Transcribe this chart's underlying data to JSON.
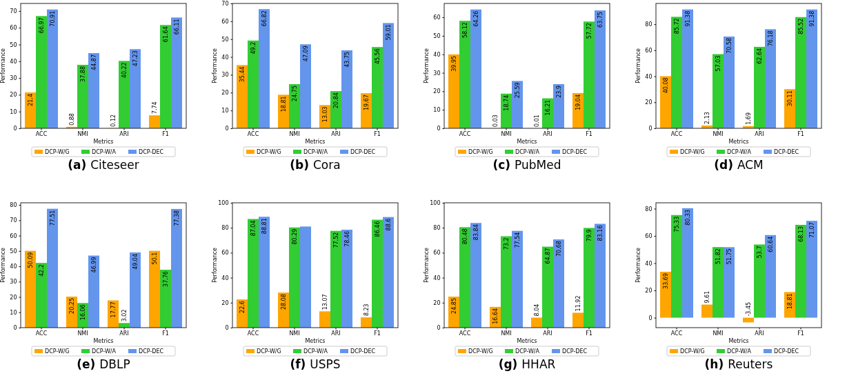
{
  "chart_data": [
    {
      "type": "bar",
      "title": "(a) Citeseer",
      "xlabel": "Metrics",
      "ylabel": "Performance",
      "categories": [
        "ACC",
        "NMI",
        "ARI",
        "F1"
      ],
      "ylim": [
        0,
        74.5
      ],
      "yticks": [
        0,
        10,
        20,
        30,
        40,
        50,
        60,
        70
      ],
      "legend": "bottom",
      "data_labels": true,
      "series": [
        {
          "name": "DCP-W/G",
          "color": "#ffa500",
          "values": [
            21.4,
            0.88,
            0.12,
            7.74
          ]
        },
        {
          "name": "DCP-W/A",
          "color": "#32cd32",
          "values": [
            66.97,
            37.88,
            40.22,
            61.64
          ]
        },
        {
          "name": "DCP-DEC",
          "color": "#6495ed",
          "values": [
            70.91,
            44.87,
            47.23,
            66.11
          ]
        }
      ]
    },
    {
      "type": "bar",
      "title": "(b) Cora",
      "xlabel": "Metrics",
      "ylabel": "Performance",
      "categories": [
        "ACC",
        "NMI",
        "ARI",
        "F1"
      ],
      "ylim": [
        0,
        70
      ],
      "yticks": [
        0,
        10,
        20,
        30,
        40,
        50,
        60,
        70
      ],
      "legend": "bottom",
      "data_labels": true,
      "series": [
        {
          "name": "DCP-W/G",
          "color": "#ffa500",
          "values": [
            35.44,
            18.81,
            13.03,
            19.67
          ]
        },
        {
          "name": "DCP-W/A",
          "color": "#32cd32",
          "values": [
            49.2,
            24.75,
            20.84,
            45.56
          ]
        },
        {
          "name": "DCP-DEC",
          "color": "#6495ed",
          "values": [
            66.82,
            47.09,
            43.75,
            59.01
          ]
        }
      ]
    },
    {
      "type": "bar",
      "title": "(c) PubMed",
      "xlabel": "Metrics",
      "ylabel": "Performance",
      "categories": [
        "ACC",
        "NMI",
        "ARI",
        "F1"
      ],
      "ylim": [
        0,
        67.5
      ],
      "yticks": [
        0,
        10,
        20,
        30,
        40,
        50,
        60
      ],
      "legend": "bottom",
      "data_labels": true,
      "series": [
        {
          "name": "DCP-W/G",
          "color": "#ffa500",
          "values": [
            39.95,
            0.03,
            0.01,
            19.04
          ]
        },
        {
          "name": "DCP-W/A",
          "color": "#32cd32",
          "values": [
            58.12,
            18.74,
            16.21,
            57.72
          ]
        },
        {
          "name": "DCP-DEC",
          "color": "#6495ed",
          "values": [
            64.26,
            25.59,
            23.9,
            63.75
          ]
        }
      ]
    },
    {
      "type": "bar",
      "title": "(d) ACM",
      "xlabel": "Metrics",
      "ylabel": "Performance",
      "categories": [
        "ACC",
        "NMI",
        "ARI",
        "F1"
      ],
      "ylim": [
        0,
        96
      ],
      "yticks": [
        0,
        20,
        40,
        60,
        80
      ],
      "legend": "bottom",
      "data_labels": true,
      "series": [
        {
          "name": "DCP-W/G",
          "color": "#ffa500",
          "values": [
            40.08,
            2.13,
            1.69,
            30.11
          ]
        },
        {
          "name": "DCP-W/A",
          "color": "#32cd32",
          "values": [
            85.72,
            57.03,
            62.64,
            85.52
          ]
        },
        {
          "name": "DCP-DEC",
          "color": "#6495ed",
          "values": [
            91.38,
            70.58,
            76.18,
            91.38
          ]
        }
      ]
    },
    {
      "type": "bar",
      "title": "(e) DBLP",
      "xlabel": "Metrics",
      "ylabel": "Performance",
      "categories": [
        "ACC",
        "NMI",
        "ARI",
        "F1"
      ],
      "ylim": [
        0,
        81.4
      ],
      "yticks": [
        0,
        10,
        20,
        30,
        40,
        50,
        60,
        70,
        80
      ],
      "legend": "bottom",
      "data_labels": true,
      "series": [
        {
          "name": "DCP-W/G",
          "color": "#ffa500",
          "values": [
            50.09,
            20.25,
            17.77,
            50.1
          ]
        },
        {
          "name": "DCP-W/A",
          "color": "#32cd32",
          "values": [
            42.2,
            16.06,
            3.02,
            37.76
          ]
        },
        {
          "name": "DCP-DEC",
          "color": "#6495ed",
          "values": [
            77.51,
            46.99,
            49.04,
            77.38
          ]
        }
      ]
    },
    {
      "type": "bar",
      "title": "(f) USPS",
      "xlabel": "Metrics",
      "ylabel": "Performance",
      "categories": [
        "ACC",
        "NMI",
        "ARI",
        "F1"
      ],
      "ylim": [
        0,
        100
      ],
      "yticks": [
        0,
        20,
        40,
        60,
        80,
        100
      ],
      "legend": "bottom",
      "series": [
        {
          "name": "DCP-W/G",
          "color": "#ffa500",
          "values": [
            22.6,
            28.08,
            13.07,
            8.23
          ],
          "value_labels": [
            "22.6",
            "28.08",
            "13.07",
            "8.23"
          ]
        },
        {
          "name": "DCP-W/A",
          "color": "#32cd32",
          "values": [
            87.04,
            80.29,
            77.52,
            86.46
          ],
          "value_labels": [
            "87.04",
            "80.29",
            "77.52",
            "86.46"
          ]
        },
        {
          "name": "DCP-DEC",
          "color": "#6495ed",
          "values": [
            88.81,
            81,
            78.46,
            88.6
          ],
          "value_labels": [
            "88.81",
            null,
            "78.46",
            "88.6"
          ]
        }
      ]
    },
    {
      "type": "bar",
      "title": "(g) HHAR",
      "xlabel": "Metrics",
      "ylabel": "Performance",
      "categories": [
        "ACC",
        "NMI",
        "ARI",
        "F1"
      ],
      "ylim": [
        0,
        100
      ],
      "yticks": [
        0,
        20,
        40,
        60,
        80,
        100
      ],
      "legend": "bottom",
      "data_labels": true,
      "series": [
        {
          "name": "DCP-W/G",
          "color": "#ffa500",
          "values": [
            24.85,
            16.64,
            8.04,
            11.92
          ]
        },
        {
          "name": "DCP-W/A",
          "color": "#32cd32",
          "values": [
            80.48,
            73.2,
            64.87,
            79.9
          ]
        },
        {
          "name": "DCP-DEC",
          "color": "#6495ed",
          "values": [
            83.84,
            77.54,
            70.68,
            83.16
          ]
        }
      ]
    },
    {
      "type": "bar",
      "title": "(h) Reuters",
      "xlabel": "Metrics",
      "ylabel": "Performance",
      "categories": [
        "ACC",
        "NMI",
        "ARI",
        "F1"
      ],
      "ylim": [
        -7.3,
        84.3
      ],
      "yticks": [
        0,
        20,
        40,
        60,
        80
      ],
      "legend": "bottom",
      "data_labels": true,
      "series": [
        {
          "name": "DCP-W/G",
          "color": "#ffa500",
          "values": [
            33.69,
            9.61,
            -3.45,
            18.81
          ]
        },
        {
          "name": "DCP-W/A",
          "color": "#32cd32",
          "values": [
            75.33,
            51.82,
            53.7,
            68.13
          ]
        },
        {
          "name": "DCP-DEC",
          "color": "#6495ed",
          "values": [
            80.33,
            51.75,
            60.64,
            71.07
          ]
        }
      ]
    }
  ]
}
